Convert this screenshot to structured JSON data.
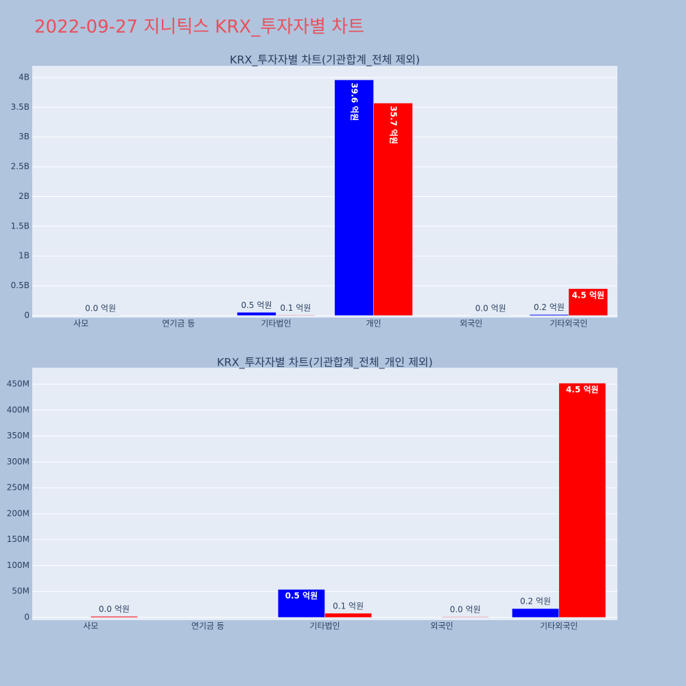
{
  "title": "2022-09-27 지니틱스 KRX_투자자별 차트",
  "chart_data": [
    {
      "type": "bar",
      "title": "KRX_투자자별 차트(기관합계_전체 제외)",
      "categories": [
        "사모",
        "연기금 등",
        "기타법인",
        "개인",
        "외국인",
        "기타외국인"
      ],
      "series": [
        {
          "color": "#0000ff",
          "values": [
            null,
            null,
            54000000,
            3960000000,
            null,
            17000000
          ],
          "value_labels": [
            null,
            null,
            "0.5 억원",
            "39.6 억원",
            null,
            "0.2 억원"
          ]
        },
        {
          "color": "#ff0000",
          "values": [
            2000000,
            null,
            8000000,
            3570000000,
            1000000,
            452000000
          ],
          "value_labels": [
            "0.0 억원",
            null,
            "0.1 억원",
            "35.7 억원",
            "0.0 억원",
            "4.5 억원"
          ]
        }
      ],
      "ylim": [
        -35000000,
        4196000000
      ],
      "yticks": [
        0,
        {
          "value": 500000000,
          "label": "0.5B"
        },
        {
          "value": 1000000000,
          "label": "1B"
        },
        {
          "value": 1500000000,
          "label": "1.5B"
        },
        {
          "value": 2000000000,
          "label": "2B"
        },
        {
          "value": 2500000000,
          "label": "2.5B"
        },
        {
          "value": 3000000000,
          "label": "3B"
        },
        {
          "value": 3500000000,
          "label": "3.5B"
        },
        {
          "value": 4000000000,
          "label": "4B"
        }
      ],
      "grid": true
    },
    {
      "type": "bar",
      "title": "KRX_투자자별 차트(기관합계_전체_개인 제외)",
      "categories": [
        "사모",
        "연기금 등",
        "기타법인",
        "외국인",
        "기타외국인"
      ],
      "series": [
        {
          "color": "#0000ff",
          "values": [
            null,
            null,
            54000000,
            null,
            17000000
          ],
          "value_labels": [
            null,
            null,
            "0.5 억원",
            null,
            "0.2 억원"
          ]
        },
        {
          "color": "#ff0000",
          "values": [
            2000000,
            null,
            8000000,
            1000000,
            452000000
          ],
          "value_labels": [
            "0.0 억원",
            null,
            "0.1 억원",
            "0.0 억원",
            "4.5 억원"
          ]
        }
      ],
      "ylim": [
        -5300000,
        481800000
      ],
      "yticks": [
        0,
        {
          "value": 50000000,
          "label": "50M"
        },
        {
          "value": 100000000,
          "label": "100M"
        },
        {
          "value": 150000000,
          "label": "150M"
        },
        {
          "value": 200000000,
          "label": "200M"
        },
        {
          "value": 250000000,
          "label": "250M"
        },
        {
          "value": 300000000,
          "label": "300M"
        },
        {
          "value": 350000000,
          "label": "350M"
        },
        {
          "value": 400000000,
          "label": "400M"
        },
        {
          "value": 450000000,
          "label": "450M"
        }
      ],
      "grid": true
    }
  ]
}
